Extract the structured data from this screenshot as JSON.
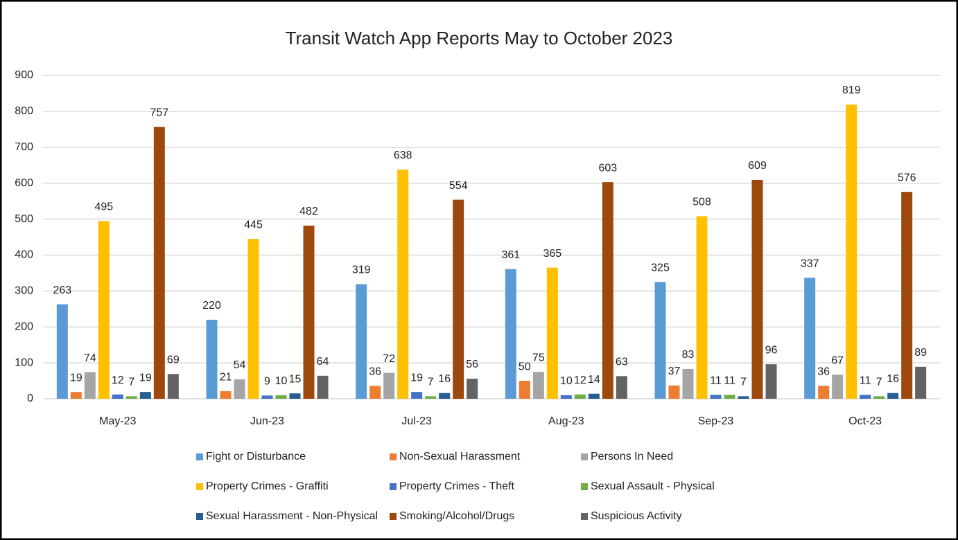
{
  "chart_data": {
    "type": "bar",
    "title": "Transit Watch App Reports May to October 2023",
    "categories": [
      "May-23",
      "Jun-23",
      "Jul-23",
      "Aug-23",
      "Sep-23",
      "Oct-23"
    ],
    "series": [
      {
        "name": "Fight or Disturbance",
        "color": "#5b9bd5",
        "values": [
          263,
          220,
          319,
          361,
          325,
          337
        ]
      },
      {
        "name": "Non-Sexual Harassment",
        "color": "#ed7d31",
        "values": [
          19,
          21,
          36,
          50,
          37,
          36
        ]
      },
      {
        "name": "Persons In Need",
        "color": "#a5a5a5",
        "values": [
          74,
          54,
          72,
          75,
          83,
          67
        ]
      },
      {
        "name": "Property Crimes - Graffiti",
        "color": "#ffc000",
        "values": [
          495,
          445,
          638,
          365,
          508,
          819
        ]
      },
      {
        "name": "Property Crimes - Theft",
        "color": "#4472c4",
        "values": [
          12,
          9,
          19,
          10,
          11,
          11
        ]
      },
      {
        "name": "Sexual Assault - Physical",
        "color": "#70ad47",
        "values": [
          7,
          10,
          7,
          12,
          11,
          7
        ]
      },
      {
        "name": "Sexual Harassment - Non-Physical",
        "color": "#255e91",
        "values": [
          19,
          15,
          16,
          14,
          7,
          16
        ]
      },
      {
        "name": "Smoking/Alcohol/Drugs",
        "color": "#9e480e",
        "values": [
          757,
          482,
          554,
          603,
          609,
          576
        ]
      },
      {
        "name": "Suspicious Activity",
        "color": "#636363",
        "values": [
          69,
          64,
          56,
          63,
          96,
          89
        ]
      }
    ],
    "ylim": [
      0,
      900
    ],
    "yticks": [
      0,
      100,
      200,
      300,
      400,
      500,
      600,
      700,
      800,
      900
    ],
    "grid": true,
    "legend": "bottom"
  }
}
